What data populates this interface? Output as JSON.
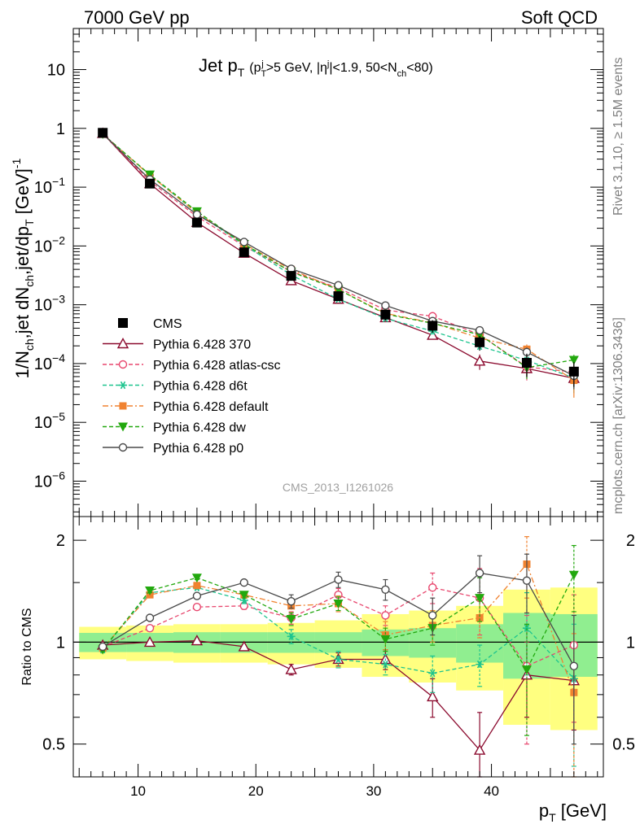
{
  "header": {
    "left": "7000 GeV pp",
    "right": "Soft QCD"
  },
  "side_labels": {
    "rivet": "Rivet 3.1.10, ≥ 1.5M events",
    "source": "mcplots.cern.ch [arXiv:1306.3436]"
  },
  "watermark": "CMS_2013_I1261026",
  "chart_data": {
    "type": "line",
    "title": {
      "main": "Jet p",
      "main_sub": "T",
      "cuts": "(p",
      "cuts_sub": "T",
      "cuts_sup": "j",
      "cuts_mid1": ">5 GeV, |η",
      "cuts_sup2": "j",
      "cuts_mid2": "|<1.9, 50<N",
      "cuts_sub2": "ch",
      "cuts_end": "<80)"
    },
    "xlabel": "p",
    "xlabel_sub": "T",
    "xlabel_unit": " [GeV]",
    "ylabel_parts": [
      "1/N",
      "ch",
      ",jet dN",
      "ch",
      ",jet/dp",
      "T",
      " [GeV]",
      "-1"
    ],
    "ratio_ylabel": "Ratio to CMS",
    "xlim": [
      4.5,
      49.5
    ],
    "ylim": [
      2.5e-07,
      50
    ],
    "yscale": "log",
    "ratio_ylim": [
      0.4,
      2.35
    ],
    "ratio_yscale": "log",
    "x_ticks": [
      "10",
      "20",
      "30",
      "40"
    ],
    "y_ticks": [
      {
        "base": "10",
        "exp": "",
        "label": "10"
      },
      {
        "base": "1",
        "exp": "",
        "label": "1"
      },
      {
        "base": "10",
        "exp": "−1"
      },
      {
        "base": "10",
        "exp": "−2"
      },
      {
        "base": "10",
        "exp": "−3"
      },
      {
        "base": "10",
        "exp": "−4"
      },
      {
        "base": "10",
        "exp": "−5"
      },
      {
        "base": "10",
        "exp": "−6"
      }
    ],
    "ratio_ticks": [
      "0.5",
      "1",
      "2"
    ],
    "x": [
      7,
      11,
      15,
      19,
      23,
      27,
      31,
      35,
      39,
      43,
      47
    ],
    "bin_edges": [
      5,
      9,
      13,
      17,
      21,
      25,
      29,
      33,
      37,
      41,
      45,
      49
    ],
    "data": {
      "name": "CMS",
      "values": [
        0.84,
        0.115,
        0.025,
        0.0078,
        0.0031,
        0.0014,
        0.00068,
        0.00044,
        0.00023,
        0.000103,
        7.3e-05
      ],
      "band_inner": [
        0.065,
        0.065,
        0.07,
        0.07,
        0.07,
        0.07,
        0.09,
        0.1,
        0.13,
        0.22,
        0.21
      ],
      "band_outer": [
        0.11,
        0.12,
        0.13,
        0.13,
        0.14,
        0.16,
        0.21,
        0.24,
        0.28,
        0.43,
        0.45
      ]
    },
    "series": [
      {
        "name": "Pythia 6.428 370",
        "color": "#8b0a2e",
        "style": "solid",
        "marker": "triangle-open",
        "ratio": [
          0.98,
          1.0,
          1.01,
          0.97,
          0.83,
          0.89,
          0.89,
          0.69,
          0.48,
          0.8,
          0.77
        ],
        "ratio_err": [
          0.01,
          0.01,
          0.01,
          0.01,
          0.03,
          0.04,
          0.06,
          0.09,
          0.14,
          0.2,
          0.22
        ]
      },
      {
        "name": "Pythia 6.428 atlas-csc",
        "color": "#e8476e",
        "style": "dashed",
        "marker": "circle-open",
        "ratio": [
          0.97,
          1.1,
          1.27,
          1.28,
          1.18,
          1.38,
          1.2,
          1.45,
          1.35,
          0.85,
          0.98
        ],
        "ratio_err": [
          0.01,
          0.01,
          0.02,
          0.03,
          0.05,
          0.06,
          0.08,
          0.15,
          0.3,
          0.35,
          0.4
        ]
      },
      {
        "name": "Pythia 6.428 d6t",
        "color": "#1ec48e",
        "style": "dashed",
        "marker": "star",
        "ratio": [
          0.95,
          1.4,
          1.45,
          1.33,
          1.04,
          0.89,
          0.86,
          0.81,
          0.86,
          1.1,
          0.78
        ],
        "ratio_err": [
          0.01,
          0.02,
          0.02,
          0.03,
          0.05,
          0.05,
          0.06,
          0.1,
          0.12,
          0.3,
          0.35
        ]
      },
      {
        "name": "Pythia 6.428 default",
        "color": "#f08230",
        "style": "dashdot",
        "marker": "square",
        "ratio": [
          0.96,
          1.38,
          1.47,
          1.38,
          1.28,
          1.3,
          1.05,
          1.12,
          1.18,
          1.7,
          0.71
        ],
        "ratio_err": [
          0.01,
          0.02,
          0.02,
          0.03,
          0.06,
          0.07,
          0.1,
          0.12,
          0.15,
          0.35,
          0.35
        ]
      },
      {
        "name": "Pythia 6.428 dw",
        "color": "#22a80e",
        "style": "dashed",
        "marker": "triangle-down",
        "ratio": [
          0.95,
          1.42,
          1.55,
          1.38,
          1.17,
          1.3,
          1.02,
          1.1,
          1.35,
          0.83,
          1.58
        ],
        "ratio_err": [
          0.01,
          0.02,
          0.02,
          0.03,
          0.05,
          0.06,
          0.08,
          0.12,
          0.2,
          0.3,
          0.35
        ]
      },
      {
        "name": "Pythia 6.428 p0",
        "color": "#4a4a4a",
        "style": "solid",
        "marker": "circle-open",
        "ratio": [
          0.97,
          1.18,
          1.37,
          1.5,
          1.32,
          1.53,
          1.43,
          1.2,
          1.6,
          1.52,
          0.85
        ],
        "ratio_err": [
          0.01,
          0.02,
          0.02,
          0.03,
          0.06,
          0.08,
          0.1,
          0.15,
          0.2,
          0.3,
          0.35
        ]
      }
    ]
  }
}
